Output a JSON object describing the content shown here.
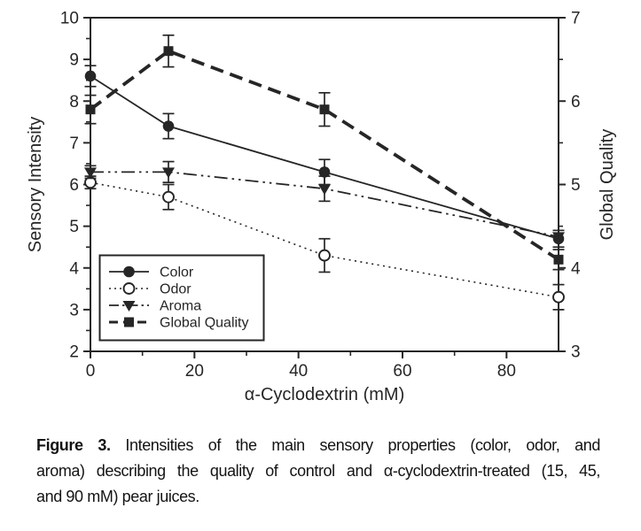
{
  "caption": {
    "label": "Figure 3.",
    "line1": "Intensities of the main sensory properties (color, odor, and",
    "line2": "aroma) describing the quality of control and α-cyclodextrin-treated (15, 45,",
    "line3": "and 90 mM) pear juices."
  },
  "colors": {
    "ink": "#262626",
    "background": "#ffffff"
  },
  "chart_data": {
    "type": "line",
    "title": "",
    "xlabel": "α-Cyclodextrin (mM)",
    "ylabel_left": "Sensory Intensity",
    "ylabel_right": "Global Quality",
    "xlim": [
      0,
      90
    ],
    "ylim_left": [
      2,
      10
    ],
    "ylim_right": [
      3,
      7
    ],
    "x_major_ticks": [
      0,
      20,
      40,
      60,
      80
    ],
    "x_minor_ticks": [
      10,
      30,
      50,
      70
    ],
    "y_left_major_step": 1,
    "y_left_minor_step": 0.5,
    "y_right_major_step": 1,
    "y_right_minor_step": 0.5,
    "grid": false,
    "legend_position": "lower-left-inside",
    "x": [
      0,
      15,
      45,
      90
    ],
    "series": [
      {
        "name": "Color",
        "axis": "left",
        "marker": "circle-filled",
        "line": "solid",
        "values": [
          8.6,
          7.4,
          6.3,
          4.7
        ],
        "errors": [
          0.25,
          0.3,
          0.3,
          0.2
        ]
      },
      {
        "name": "Odor",
        "axis": "left",
        "marker": "circle-open",
        "line": "dotted",
        "values": [
          6.05,
          5.7,
          4.3,
          3.3
        ],
        "errors": [
          0.15,
          0.3,
          0.4,
          0.3
        ]
      },
      {
        "name": "Aroma",
        "axis": "left",
        "marker": "triangle-down-filled",
        "line": "dash-dot-dot",
        "values": [
          6.3,
          6.3,
          5.9,
          4.75
        ],
        "errors": [
          0.15,
          0.25,
          0.3,
          0
        ]
      },
      {
        "name": "Global Quality",
        "axis": "right",
        "marker": "square-filled",
        "line": "dashed-bold",
        "values": [
          5.9,
          6.6,
          5.9,
          4.1
        ],
        "errors": [
          0.17,
          0.19,
          0.2,
          0.12
        ]
      }
    ]
  }
}
